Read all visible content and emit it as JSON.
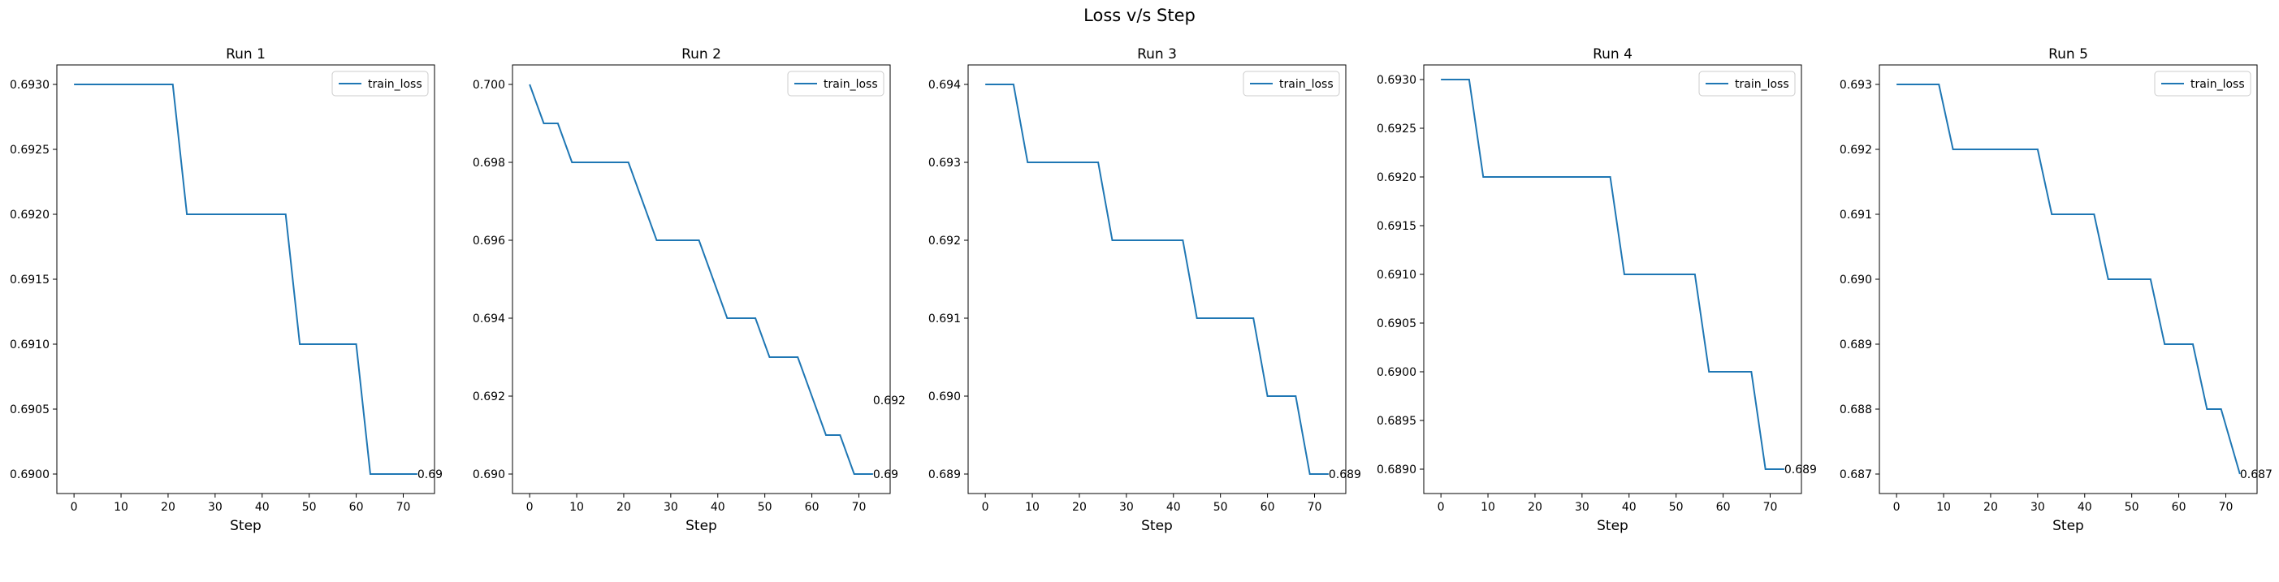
{
  "figure": {
    "title": "Loss v/s Step"
  },
  "colors": {
    "line": "#1f77b4",
    "axes": "#000000",
    "legend_border": "#cccccc"
  },
  "chart_data": [
    {
      "type": "line",
      "title": "Run 1",
      "xlabel": "Step",
      "ylabel": "",
      "legend": {
        "entries": [
          "train_loss"
        ],
        "placement": "top-right"
      },
      "xlim": [
        -3.65,
        76.65
      ],
      "ylim": [
        0.68985,
        0.69315
      ],
      "xticks": [
        0,
        10,
        20,
        30,
        40,
        50,
        60,
        70
      ],
      "yticks": [
        0.69,
        0.6905,
        0.691,
        0.6915,
        0.692,
        0.6925,
        0.693
      ],
      "ytick_labels": [
        "0.6900",
        "0.6905",
        "0.6910",
        "0.6915",
        "0.6920",
        "0.6925",
        "0.6930"
      ],
      "series": [
        {
          "name": "train_loss",
          "x": [
            0,
            21,
            24,
            45,
            48,
            60,
            63,
            73
          ],
          "y": [
            0.693,
            0.693,
            0.692,
            0.692,
            0.691,
            0.691,
            0.69,
            0.69
          ]
        }
      ],
      "annotation": {
        "x": 73,
        "y": 0.69,
        "text": "0.69"
      },
      "grid": false
    },
    {
      "type": "line",
      "title": "Run 2",
      "xlabel": "Step",
      "ylabel": "",
      "legend": {
        "entries": [
          "train_loss"
        ],
        "placement": "top-right"
      },
      "xlim": [
        -3.65,
        76.65
      ],
      "ylim": [
        0.6895,
        0.7005
      ],
      "xticks": [
        0,
        10,
        20,
        30,
        40,
        50,
        60,
        70
      ],
      "yticks": [
        0.69,
        0.692,
        0.694,
        0.696,
        0.698,
        0.7
      ],
      "ytick_labels": [
        "0.690",
        "0.692",
        "0.694",
        "0.696",
        "0.698",
        "0.700"
      ],
      "series": [
        {
          "name": "train_loss",
          "x": [
            0,
            3,
            6,
            9,
            21,
            27,
            36,
            42,
            48,
            51,
            57,
            63,
            66,
            69,
            73
          ],
          "y": [
            0.7,
            0.699,
            0.699,
            0.698,
            0.698,
            0.696,
            0.696,
            0.694,
            0.694,
            0.693,
            0.693,
            0.691,
            0.691,
            0.69,
            0.69
          ]
        }
      ],
      "annotations": [
        {
          "x": 73,
          "y": 0.69,
          "text": "0.69"
        },
        {
          "x": 73,
          "y": 0.6919,
          "text": "0.692"
        }
      ],
      "grid": false
    },
    {
      "type": "line",
      "title": "Run 3",
      "xlabel": "Step",
      "ylabel": "",
      "legend": {
        "entries": [
          "train_loss"
        ],
        "placement": "top-right"
      },
      "xlim": [
        -3.65,
        76.65
      ],
      "ylim": [
        0.68875,
        0.69425
      ],
      "xticks": [
        0,
        10,
        20,
        30,
        40,
        50,
        60,
        70
      ],
      "yticks": [
        0.689,
        0.69,
        0.691,
        0.692,
        0.693,
        0.694
      ],
      "ytick_labels": [
        "0.689",
        "0.690",
        "0.691",
        "0.692",
        "0.693",
        "0.694"
      ],
      "series": [
        {
          "name": "train_loss",
          "x": [
            0,
            6,
            9,
            24,
            27,
            42,
            45,
            57,
            60,
            66,
            69,
            73
          ],
          "y": [
            0.694,
            0.694,
            0.693,
            0.693,
            0.692,
            0.692,
            0.691,
            0.691,
            0.69,
            0.69,
            0.689,
            0.689
          ]
        }
      ],
      "annotation": {
        "x": 73,
        "y": 0.689,
        "text": "0.689"
      },
      "grid": false
    },
    {
      "type": "line",
      "title": "Run 4",
      "xlabel": "Step",
      "ylabel": "",
      "legend": {
        "entries": [
          "train_loss"
        ],
        "placement": "top-right"
      },
      "xlim": [
        -3.65,
        76.65
      ],
      "ylim": [
        0.68875,
        0.69315
      ],
      "xticks": [
        0,
        10,
        20,
        30,
        40,
        50,
        60,
        70
      ],
      "yticks": [
        0.689,
        0.6895,
        0.69,
        0.6905,
        0.691,
        0.6915,
        0.692,
        0.6925,
        0.693
      ],
      "ytick_labels": [
        "0.6890",
        "0.6895",
        "0.6900",
        "0.6905",
        "0.6910",
        "0.6915",
        "0.6920",
        "0.6925",
        "0.6930"
      ],
      "series": [
        {
          "name": "train_loss",
          "x": [
            0,
            6,
            9,
            36,
            39,
            54,
            57,
            66,
            69,
            73
          ],
          "y": [
            0.693,
            0.693,
            0.692,
            0.692,
            0.691,
            0.691,
            0.69,
            0.69,
            0.689,
            0.689
          ]
        }
      ],
      "annotation": {
        "x": 73,
        "y": 0.689,
        "text": "0.689"
      },
      "grid": false
    },
    {
      "type": "line",
      "title": "Run 5",
      "xlabel": "Step",
      "ylabel": "",
      "legend": {
        "entries": [
          "train_loss"
        ],
        "placement": "top-right"
      },
      "xlim": [
        -3.65,
        76.65
      ],
      "ylim": [
        0.6867,
        0.6933
      ],
      "xticks": [
        0,
        10,
        20,
        30,
        40,
        50,
        60,
        70
      ],
      "yticks": [
        0.687,
        0.688,
        0.689,
        0.69,
        0.691,
        0.692,
        0.693
      ],
      "ytick_labels": [
        "0.687",
        "0.688",
        "0.689",
        "0.690",
        "0.691",
        "0.692",
        "0.693"
      ],
      "series": [
        {
          "name": "train_loss",
          "x": [
            0,
            9,
            12,
            30,
            33,
            42,
            45,
            54,
            57,
            63,
            66,
            69,
            73
          ],
          "y": [
            0.693,
            0.693,
            0.692,
            0.692,
            0.691,
            0.691,
            0.69,
            0.69,
            0.689,
            0.689,
            0.688,
            0.688,
            0.687
          ]
        }
      ],
      "annotation": {
        "x": 73,
        "y": 0.687,
        "text": "0.687"
      },
      "grid": false
    }
  ]
}
